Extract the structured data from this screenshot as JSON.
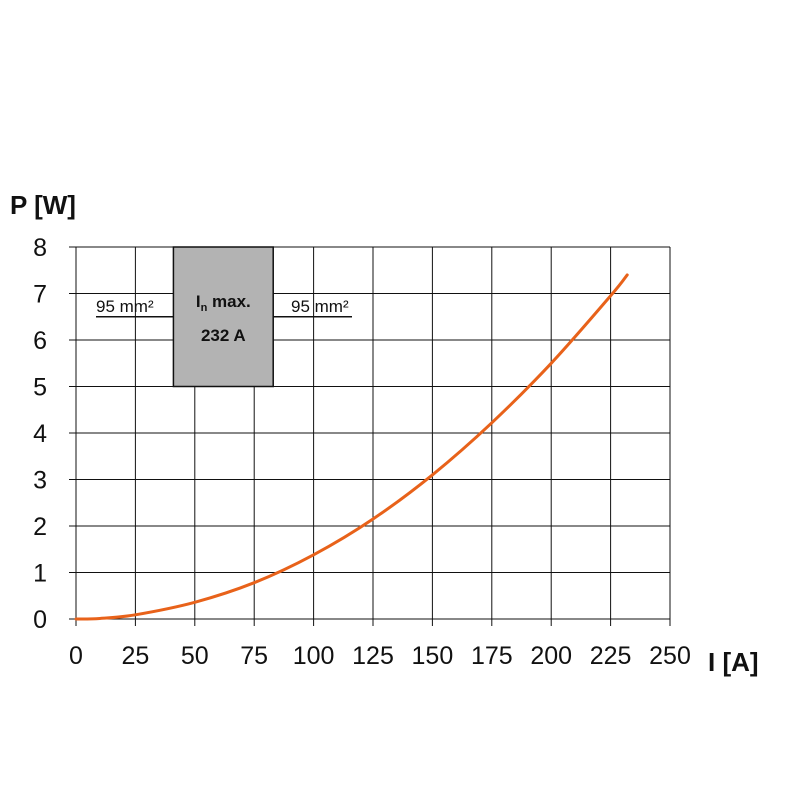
{
  "chart_data": {
    "type": "line",
    "xlabel": "I [A]",
    "ylabel": "P [W]",
    "xlim": [
      0,
      250
    ],
    "ylim": [
      0,
      8
    ],
    "x_ticks": [
      "0",
      "25",
      "50",
      "75",
      "100",
      "125",
      "150",
      "175",
      "200",
      "225",
      "250"
    ],
    "y_ticks": [
      "0",
      "1",
      "2",
      "3",
      "4",
      "5",
      "6",
      "7",
      "8"
    ],
    "grid": true,
    "series": [
      {
        "color": "#e8621a",
        "x": [
          0,
          10,
          25,
          50,
          75,
          100,
          125,
          150,
          175,
          200,
          225,
          232
        ],
        "y": [
          0.0,
          0.01,
          0.09,
          0.36,
          0.78,
          1.38,
          2.15,
          3.1,
          4.22,
          5.5,
          6.95,
          7.4
        ]
      }
    ],
    "annotation": {
      "left_conductor": "95 mm²",
      "right_conductor": "95 mm²",
      "rating_label": "I",
      "rating_subscript": "n",
      "rating_suffix": " max.",
      "rating_value": "232 A",
      "box_x_range": [
        41,
        83
      ],
      "box_y_range": [
        5,
        8
      ],
      "box_color": "#b3b3b3"
    }
  }
}
